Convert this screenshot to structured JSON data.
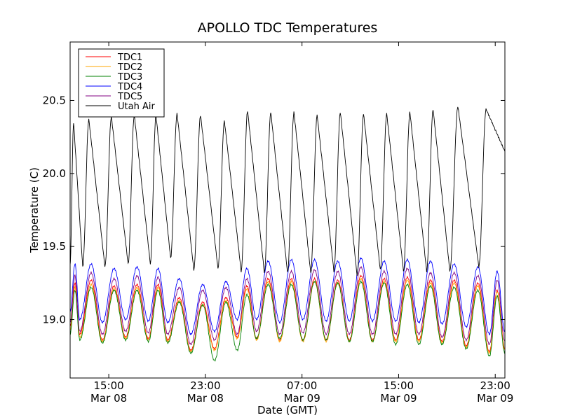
{
  "chart_data": {
    "type": "line",
    "title": "APOLLO TDC Temperatures",
    "xlabel": "Date (GMT)",
    "ylabel": "Temperature (C)",
    "x_unit": "hours since Mar 08 08:00 GMT",
    "xlim": [
      0,
      45
    ],
    "ylim": [
      18.6,
      20.9
    ],
    "y_ticks": [
      19.0,
      19.5,
      20.0,
      20.5
    ],
    "y_tick_labels": [
      "19.0",
      "19.5",
      "20.0",
      "20.5"
    ],
    "x_ticks": [
      {
        "x": 4,
        "label_time": "15:00",
        "label_date": "Mar 08"
      },
      {
        "x": 14,
        "label_time": "23:00",
        "label_date": "Mar 08"
      },
      {
        "x": 24,
        "label_time": "07:00",
        "label_date": "Mar 09"
      },
      {
        "x": 34,
        "label_time": "15:00",
        "label_date": "Mar 09"
      },
      {
        "x": 44,
        "label_time": "23:00",
        "label_date": "Mar 09"
      }
    ],
    "grid": false,
    "legend_position": "top-left",
    "series": [
      {
        "name": "TDC1",
        "color": "#ff0000",
        "cycles": [
          {
            "start": 0,
            "min": 18.95,
            "max": 19.25
          },
          {
            "start": 1.0,
            "min": 18.9,
            "max": 19.27
          },
          {
            "start": 3.35,
            "min": 18.86,
            "max": 19.23
          },
          {
            "start": 5.75,
            "min": 18.88,
            "max": 19.24
          },
          {
            "start": 8.1,
            "min": 18.87,
            "max": 19.24
          },
          {
            "start": 10.1,
            "min": 18.86,
            "max": 19.15
          },
          {
            "start": 12.5,
            "min": 18.79,
            "max": 19.12
          },
          {
            "start": 14.95,
            "min": 18.8,
            "max": 19.15
          },
          {
            "start": 17.3,
            "min": 18.88,
            "max": 19.23
          },
          {
            "start": 19.3,
            "min": 18.87,
            "max": 19.28
          },
          {
            "start": 21.7,
            "min": 18.86,
            "max": 19.28
          },
          {
            "start": 24.1,
            "min": 18.86,
            "max": 19.28
          },
          {
            "start": 26.5,
            "min": 18.86,
            "max": 19.27
          },
          {
            "start": 28.9,
            "min": 18.86,
            "max": 19.3
          },
          {
            "start": 31.3,
            "min": 18.86,
            "max": 19.28
          },
          {
            "start": 33.7,
            "min": 18.86,
            "max": 19.29
          },
          {
            "start": 36.1,
            "min": 18.86,
            "max": 19.27
          },
          {
            "start": 38.5,
            "min": 18.85,
            "max": 19.27
          },
          {
            "start": 41.0,
            "min": 18.82,
            "max": 19.25
          },
          {
            "start": 43.4,
            "min": 18.78,
            "max": 19.2
          },
          {
            "start": 45.0,
            "min": 18.8,
            "max": 19.2
          }
        ]
      },
      {
        "name": "TDC2",
        "color": "#ffa500",
        "cycles": [
          {
            "start": 0,
            "min": 18.93,
            "max": 19.22
          },
          {
            "start": 1.0,
            "min": 18.88,
            "max": 19.24
          },
          {
            "start": 3.35,
            "min": 18.85,
            "max": 19.21
          },
          {
            "start": 5.75,
            "min": 18.87,
            "max": 19.22
          },
          {
            "start": 8.1,
            "min": 18.86,
            "max": 19.22
          },
          {
            "start": 10.1,
            "min": 18.85,
            "max": 19.13
          },
          {
            "start": 12.5,
            "min": 18.78,
            "max": 19.1
          },
          {
            "start": 14.95,
            "min": 18.79,
            "max": 19.13
          },
          {
            "start": 17.3,
            "min": 18.87,
            "max": 19.21
          },
          {
            "start": 19.3,
            "min": 18.86,
            "max": 19.26
          },
          {
            "start": 21.7,
            "min": 18.85,
            "max": 19.26
          },
          {
            "start": 24.1,
            "min": 18.85,
            "max": 19.26
          },
          {
            "start": 26.5,
            "min": 18.85,
            "max": 19.25
          },
          {
            "start": 28.9,
            "min": 18.85,
            "max": 19.28
          },
          {
            "start": 31.3,
            "min": 18.85,
            "max": 19.26
          },
          {
            "start": 33.7,
            "min": 18.85,
            "max": 19.27
          },
          {
            "start": 36.1,
            "min": 18.85,
            "max": 19.25
          },
          {
            "start": 38.5,
            "min": 18.84,
            "max": 19.25
          },
          {
            "start": 41.0,
            "min": 18.81,
            "max": 19.23
          },
          {
            "start": 43.4,
            "min": 18.77,
            "max": 19.19
          },
          {
            "start": 45.0,
            "min": 18.79,
            "max": 19.19
          }
        ]
      },
      {
        "name": "TDC3",
        "color": "#008000",
        "cycles": [
          {
            "start": 0,
            "min": 18.9,
            "max": 19.2
          },
          {
            "start": 1.0,
            "min": 18.86,
            "max": 19.22
          },
          {
            "start": 3.35,
            "min": 18.84,
            "max": 19.2
          },
          {
            "start": 5.75,
            "min": 18.86,
            "max": 19.2
          },
          {
            "start": 8.1,
            "min": 18.85,
            "max": 19.2
          },
          {
            "start": 10.1,
            "min": 18.84,
            "max": 19.12
          },
          {
            "start": 12.5,
            "min": 18.77,
            "max": 19.1
          },
          {
            "start": 14.95,
            "min": 18.72,
            "max": 19.12
          },
          {
            "start": 17.3,
            "min": 18.79,
            "max": 19.17
          },
          {
            "start": 19.3,
            "min": 18.87,
            "max": 19.24
          },
          {
            "start": 21.7,
            "min": 18.87,
            "max": 19.24
          },
          {
            "start": 24.1,
            "min": 18.86,
            "max": 19.26
          },
          {
            "start": 26.5,
            "min": 18.86,
            "max": 19.25
          },
          {
            "start": 28.9,
            "min": 18.85,
            "max": 19.26
          },
          {
            "start": 31.3,
            "min": 18.85,
            "max": 19.25
          },
          {
            "start": 33.7,
            "min": 18.83,
            "max": 19.24
          },
          {
            "start": 36.1,
            "min": 18.83,
            "max": 19.23
          },
          {
            "start": 38.5,
            "min": 18.83,
            "max": 19.22
          },
          {
            "start": 41.0,
            "min": 18.8,
            "max": 19.2
          },
          {
            "start": 43.4,
            "min": 18.75,
            "max": 19.16
          },
          {
            "start": 45.0,
            "min": 18.77,
            "max": 19.17
          }
        ]
      },
      {
        "name": "TDC4",
        "color": "#0000ff",
        "cycles": [
          {
            "start": 0,
            "min": 19.05,
            "max": 19.38
          },
          {
            "start": 1.0,
            "min": 19.0,
            "max": 19.38
          },
          {
            "start": 3.35,
            "min": 18.98,
            "max": 19.35
          },
          {
            "start": 5.75,
            "min": 19.0,
            "max": 19.36
          },
          {
            "start": 8.1,
            "min": 18.99,
            "max": 19.35
          },
          {
            "start": 10.1,
            "min": 18.98,
            "max": 19.28
          },
          {
            "start": 12.5,
            "min": 18.9,
            "max": 19.24
          },
          {
            "start": 14.95,
            "min": 18.92,
            "max": 19.26
          },
          {
            "start": 17.3,
            "min": 19.0,
            "max": 19.35
          },
          {
            "start": 19.3,
            "min": 19.0,
            "max": 19.4
          },
          {
            "start": 21.7,
            "min": 18.98,
            "max": 19.41
          },
          {
            "start": 24.1,
            "min": 19.0,
            "max": 19.41
          },
          {
            "start": 26.5,
            "min": 18.99,
            "max": 19.4
          },
          {
            "start": 28.9,
            "min": 18.99,
            "max": 19.42
          },
          {
            "start": 31.3,
            "min": 18.99,
            "max": 19.4
          },
          {
            "start": 33.7,
            "min": 18.99,
            "max": 19.41
          },
          {
            "start": 36.1,
            "min": 18.98,
            "max": 19.4
          },
          {
            "start": 38.5,
            "min": 18.97,
            "max": 19.38
          },
          {
            "start": 41.0,
            "min": 18.95,
            "max": 19.36
          },
          {
            "start": 43.4,
            "min": 18.9,
            "max": 19.33
          },
          {
            "start": 45.0,
            "min": 18.92,
            "max": 19.33
          }
        ]
      },
      {
        "name": "TDC5",
        "color": "#800080",
        "cycles": [
          {
            "start": 0,
            "min": 18.98,
            "max": 19.3
          },
          {
            "start": 1.0,
            "min": 18.92,
            "max": 19.32
          },
          {
            "start": 3.35,
            "min": 18.9,
            "max": 19.28
          },
          {
            "start": 5.75,
            "min": 18.92,
            "max": 19.3
          },
          {
            "start": 8.1,
            "min": 18.91,
            "max": 19.29
          },
          {
            "start": 10.1,
            "min": 18.9,
            "max": 19.22
          },
          {
            "start": 12.5,
            "min": 18.83,
            "max": 19.2
          },
          {
            "start": 14.95,
            "min": 18.86,
            "max": 19.22
          },
          {
            "start": 17.3,
            "min": 18.9,
            "max": 19.28
          },
          {
            "start": 19.3,
            "min": 18.92,
            "max": 19.33
          },
          {
            "start": 21.7,
            "min": 18.9,
            "max": 19.33
          },
          {
            "start": 24.1,
            "min": 18.91,
            "max": 19.34
          },
          {
            "start": 26.5,
            "min": 18.9,
            "max": 19.33
          },
          {
            "start": 28.9,
            "min": 18.9,
            "max": 19.36
          },
          {
            "start": 31.3,
            "min": 18.9,
            "max": 19.33
          },
          {
            "start": 33.7,
            "min": 18.9,
            "max": 19.35
          },
          {
            "start": 36.1,
            "min": 18.9,
            "max": 19.32
          },
          {
            "start": 38.5,
            "min": 18.88,
            "max": 19.32
          },
          {
            "start": 41.0,
            "min": 18.86,
            "max": 19.3
          },
          {
            "start": 43.4,
            "min": 18.83,
            "max": 19.27
          },
          {
            "start": 45.0,
            "min": 18.85,
            "max": 19.27
          }
        ]
      },
      {
        "name": "Utah Air",
        "color": "#000000",
        "shape": "sawtooth",
        "cycles": [
          {
            "start": 0,
            "min": 19.38,
            "max": 20.35
          },
          {
            "start": 1.3,
            "min": 19.36,
            "max": 20.37
          },
          {
            "start": 3.6,
            "min": 19.36,
            "max": 20.39
          },
          {
            "start": 6.0,
            "min": 19.38,
            "max": 20.4
          },
          {
            "start": 8.3,
            "min": 19.38,
            "max": 20.4
          },
          {
            "start": 10.4,
            "min": 19.42,
            "max": 20.41
          },
          {
            "start": 12.8,
            "min": 19.34,
            "max": 20.4
          },
          {
            "start": 15.3,
            "min": 19.35,
            "max": 20.36
          },
          {
            "start": 17.7,
            "min": 19.33,
            "max": 20.43
          },
          {
            "start": 20.1,
            "min": 19.32,
            "max": 20.42
          },
          {
            "start": 22.5,
            "min": 19.32,
            "max": 20.42
          },
          {
            "start": 24.9,
            "min": 19.32,
            "max": 20.4
          },
          {
            "start": 27.3,
            "min": 19.33,
            "max": 20.42
          },
          {
            "start": 29.7,
            "min": 19.3,
            "max": 20.41
          },
          {
            "start": 32.1,
            "min": 19.34,
            "max": 20.41
          },
          {
            "start": 34.5,
            "min": 19.33,
            "max": 20.42
          },
          {
            "start": 36.9,
            "min": 19.33,
            "max": 20.44
          },
          {
            "start": 39.3,
            "min": 19.33,
            "max": 20.46
          },
          {
            "start": 42.3,
            "min": 19.36,
            "max": 20.44
          },
          {
            "start": 45.0,
            "min": 20.15,
            "max": 20.15
          }
        ]
      }
    ]
  }
}
